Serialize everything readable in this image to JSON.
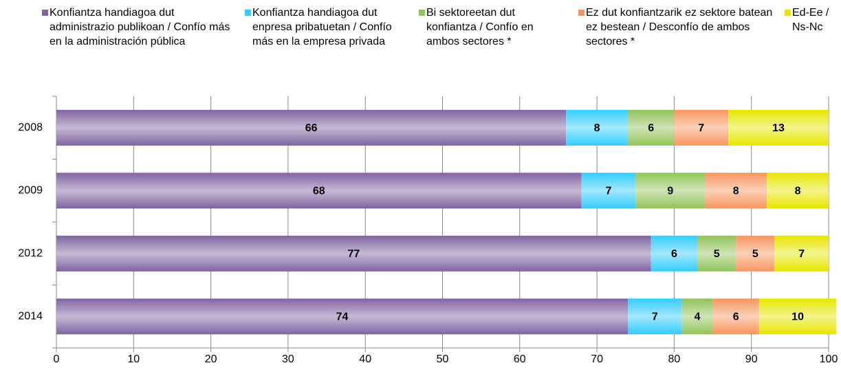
{
  "chart_data": {
    "type": "stacked-bar-horizontal",
    "categories": [
      "2008",
      "2009",
      "2012",
      "2014"
    ],
    "series": [
      {
        "name": "Konfiantza handiagoa dut administrazio publikoan / Confío más en la administración pública",
        "color": "#8064a2",
        "values": [
          66,
          68,
          77,
          74
        ]
      },
      {
        "name": "Konfiantza handiagoa dut enpresa pribatuetan / Confío más en la empresa privada",
        "color": "#33ccff",
        "values": [
          8,
          7,
          6,
          7
        ]
      },
      {
        "name": "Bi sektoreetan dut konfiantza / Confío en ambos sectores *",
        "color": "#92c45a",
        "values": [
          6,
          9,
          5,
          4
        ]
      },
      {
        "name": "Ez dut konfiantzarik ez sektore batean ez bestean / Desconfío de ambos sectores *",
        "color": "#f7965f",
        "values": [
          7,
          8,
          5,
          6
        ]
      },
      {
        "name": "Ed-Ee / Ns-Nc",
        "color": "#e6e600",
        "values": [
          13,
          8,
          7,
          10
        ]
      }
    ],
    "xlim": [
      0,
      100
    ],
    "xticks": [
      0,
      10,
      20,
      30,
      40,
      50,
      60,
      70,
      80,
      90,
      100
    ],
    "grid": true,
    "legend": "top"
  }
}
